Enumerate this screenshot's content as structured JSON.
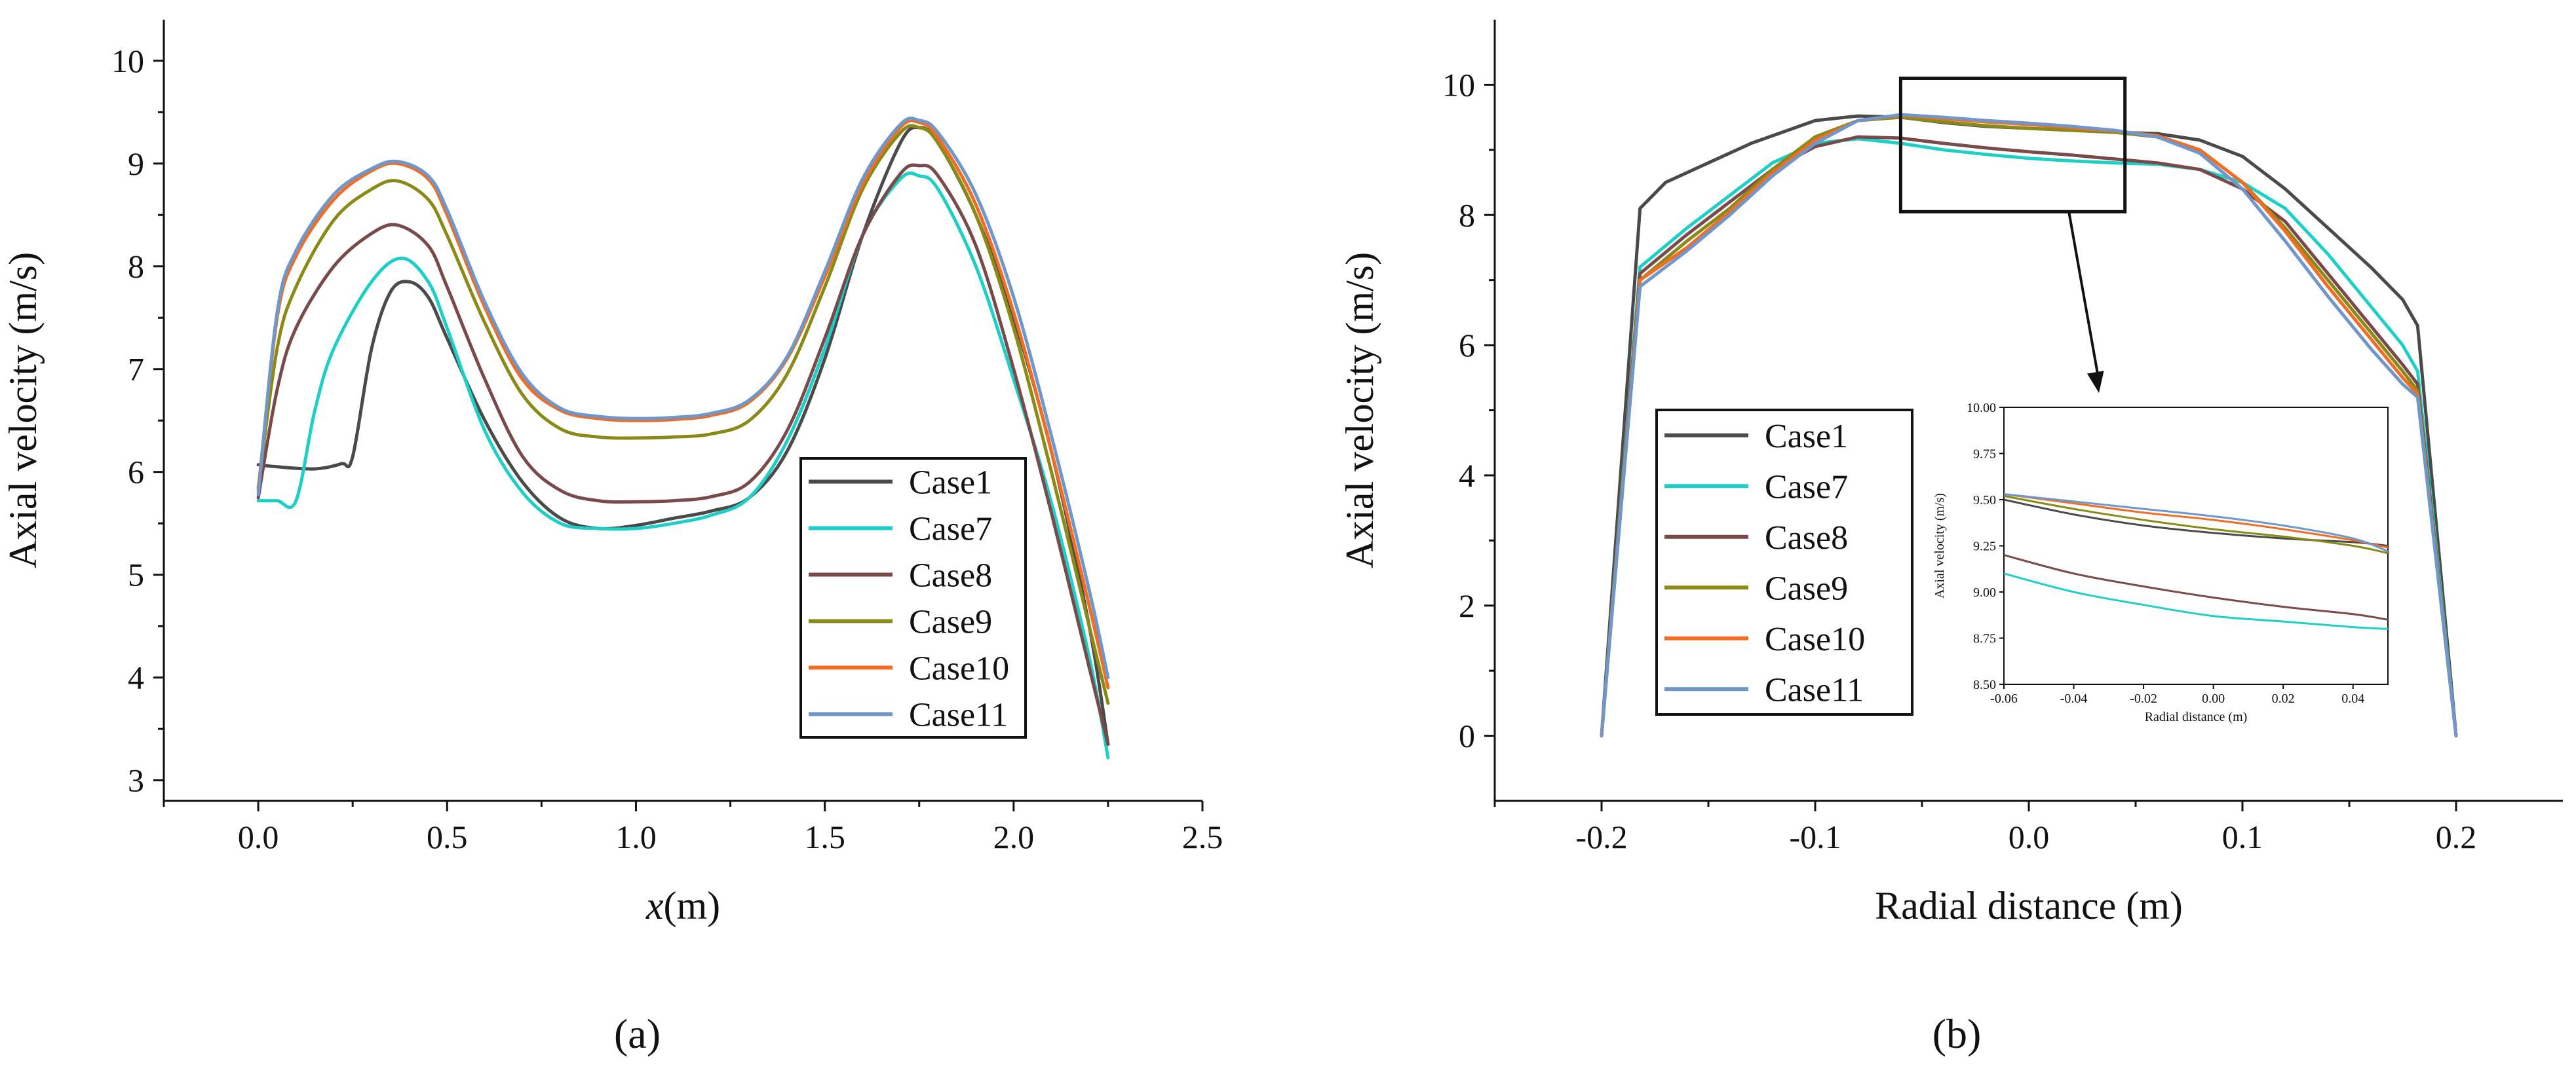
{
  "colors": {
    "Case1": "#4a4a4a",
    "Case7": "#1ecfc8",
    "Case8": "#7a4a4a",
    "Case9": "#8a8a16",
    "Case10": "#f26d23",
    "Case11": "#6f97c9"
  },
  "chart_data": [
    {
      "id": "a",
      "type": "line",
      "caption_letter": "a",
      "xlabel_italic": "x",
      "xlabel_unit": "(m)",
      "ylabel": "Axial velocity (m/s)",
      "xlim": [
        -0.25,
        2.5
      ],
      "ylim": [
        2.8,
        10.4
      ],
      "xticks": [
        0.0,
        0.5,
        1.0,
        1.5,
        2.0,
        2.5
      ],
      "xtick_labels": [
        "0.0",
        "0.5",
        "1.0",
        "1.5",
        "2.0",
        "2.5"
      ],
      "yticks": [
        3,
        4,
        5,
        6,
        7,
        8,
        9,
        10
      ],
      "ytick_labels": [
        "3",
        "4",
        "5",
        "6",
        "7",
        "8",
        "9",
        "10"
      ],
      "series": [
        {
          "name": "Case1",
          "x": [
            0,
            0.05,
            0.15,
            0.22,
            0.25,
            0.3,
            0.35,
            0.4,
            0.45,
            0.5,
            0.6,
            0.7,
            0.8,
            0.9,
            1.0,
            1.1,
            1.2,
            1.3,
            1.4,
            1.5,
            1.6,
            1.7,
            1.75,
            1.8,
            1.9,
            2.0,
            2.1,
            2.2,
            2.25
          ],
          "y": [
            6.07,
            6.05,
            6.03,
            6.08,
            6.15,
            7.2,
            7.75,
            7.85,
            7.7,
            7.3,
            6.5,
            5.9,
            5.55,
            5.45,
            5.48,
            5.55,
            5.62,
            5.75,
            6.2,
            7.1,
            8.3,
            9.2,
            9.35,
            9.2,
            8.5,
            7.5,
            6.2,
            4.5,
            3.35
          ]
        },
        {
          "name": "Case7",
          "x": [
            0,
            0.05,
            0.1,
            0.15,
            0.2,
            0.3,
            0.38,
            0.45,
            0.5,
            0.6,
            0.7,
            0.8,
            0.9,
            1.0,
            1.1,
            1.2,
            1.3,
            1.4,
            1.5,
            1.6,
            1.7,
            1.75,
            1.8,
            1.9,
            2.0,
            2.1,
            2.2,
            2.25
          ],
          "y": [
            5.72,
            5.72,
            5.72,
            6.6,
            7.2,
            7.85,
            8.08,
            7.85,
            7.4,
            6.4,
            5.8,
            5.5,
            5.45,
            5.45,
            5.5,
            5.58,
            5.75,
            6.3,
            7.2,
            8.3,
            8.85,
            8.88,
            8.75,
            8.0,
            6.9,
            5.7,
            4.2,
            3.22
          ]
        },
        {
          "name": "Case8",
          "x": [
            0,
            0.05,
            0.1,
            0.2,
            0.3,
            0.37,
            0.45,
            0.5,
            0.6,
            0.7,
            0.8,
            0.9,
            1.0,
            1.1,
            1.2,
            1.3,
            1.4,
            1.5,
            1.6,
            1.7,
            1.75,
            1.8,
            1.9,
            2.0,
            2.1,
            2.2,
            2.25
          ],
          "y": [
            5.75,
            6.8,
            7.4,
            8.0,
            8.32,
            8.4,
            8.2,
            7.8,
            6.9,
            6.15,
            5.82,
            5.72,
            5.71,
            5.72,
            5.76,
            5.9,
            6.4,
            7.3,
            8.3,
            8.9,
            8.98,
            8.88,
            8.2,
            7.0,
            5.6,
            4.1,
            3.35
          ]
        },
        {
          "name": "Case9",
          "x": [
            0,
            0.05,
            0.1,
            0.2,
            0.3,
            0.37,
            0.45,
            0.5,
            0.6,
            0.7,
            0.8,
            0.9,
            1.0,
            1.1,
            1.2,
            1.3,
            1.4,
            1.5,
            1.6,
            1.7,
            1.75,
            1.8,
            1.9,
            2.0,
            2.1,
            2.2,
            2.25
          ],
          "y": [
            5.85,
            7.2,
            7.8,
            8.45,
            8.75,
            8.83,
            8.65,
            8.3,
            7.45,
            6.75,
            6.42,
            6.34,
            6.33,
            6.34,
            6.37,
            6.5,
            6.95,
            7.8,
            8.75,
            9.3,
            9.35,
            9.2,
            8.5,
            7.4,
            6.0,
            4.5,
            3.75
          ]
        },
        {
          "name": "Case10",
          "x": [
            0,
            0.05,
            0.1,
            0.2,
            0.3,
            0.37,
            0.45,
            0.5,
            0.6,
            0.7,
            0.8,
            0.9,
            1.0,
            1.1,
            1.2,
            1.3,
            1.4,
            1.5,
            1.6,
            1.7,
            1.75,
            1.8,
            1.9,
            2.0,
            2.1,
            2.2,
            2.25
          ],
          "y": [
            5.82,
            7.5,
            8.1,
            8.65,
            8.93,
            9.0,
            8.85,
            8.5,
            7.6,
            6.9,
            6.6,
            6.52,
            6.5,
            6.51,
            6.55,
            6.68,
            7.1,
            7.9,
            8.8,
            9.35,
            9.4,
            9.25,
            8.6,
            7.55,
            6.2,
            4.7,
            3.9
          ]
        },
        {
          "name": "Case11",
          "x": [
            0,
            0.05,
            0.1,
            0.2,
            0.3,
            0.37,
            0.45,
            0.5,
            0.6,
            0.7,
            0.8,
            0.9,
            1.0,
            1.1,
            1.2,
            1.3,
            1.4,
            1.5,
            1.6,
            1.7,
            1.75,
            1.8,
            1.9,
            2.0,
            2.1,
            2.2,
            2.25
          ],
          "y": [
            5.78,
            7.55,
            8.15,
            8.7,
            8.95,
            9.02,
            8.88,
            8.55,
            7.65,
            6.95,
            6.62,
            6.54,
            6.52,
            6.53,
            6.57,
            6.7,
            7.12,
            7.95,
            8.85,
            9.38,
            9.42,
            9.3,
            8.7,
            7.7,
            6.35,
            4.85,
            4.0
          ]
        }
      ]
    },
    {
      "id": "b",
      "type": "line",
      "caption_letter": "b",
      "xlabel": "Radial distance (m)",
      "ylabel": "Axial velocity (m/s)",
      "xlim": [
        -0.25,
        0.25
      ],
      "ylim": [
        -1,
        11
      ],
      "xticks": [
        -0.2,
        -0.1,
        0.0,
        0.1,
        0.2
      ],
      "xtick_labels": [
        "-0.2",
        "-0.1",
        "0.0",
        "0.1",
        "0.2"
      ],
      "yticks": [
        0,
        2,
        4,
        6,
        8,
        10
      ],
      "ytick_labels": [
        "0",
        "2",
        "4",
        "6",
        "8",
        "10"
      ],
      "series": [
        {
          "name": "Case1",
          "x": [
            -0.2,
            -0.182,
            -0.17,
            -0.15,
            -0.13,
            -0.1,
            -0.08,
            -0.06,
            -0.04,
            -0.02,
            0.0,
            0.02,
            0.04,
            0.06,
            0.08,
            0.1,
            0.12,
            0.14,
            0.16,
            0.175,
            0.182,
            0.2
          ],
          "y": [
            0,
            8.1,
            8.5,
            8.8,
            9.1,
            9.45,
            9.52,
            9.5,
            9.42,
            9.36,
            9.33,
            9.3,
            9.27,
            9.25,
            9.15,
            8.9,
            8.4,
            7.8,
            7.2,
            6.7,
            6.3,
            0
          ]
        },
        {
          "name": "Case7",
          "x": [
            -0.2,
            -0.182,
            -0.16,
            -0.14,
            -0.12,
            -0.1,
            -0.08,
            -0.06,
            -0.04,
            -0.02,
            0.0,
            0.02,
            0.04,
            0.06,
            0.08,
            0.1,
            0.12,
            0.14,
            0.16,
            0.175,
            0.182,
            0.2
          ],
          "y": [
            0,
            7.2,
            7.8,
            8.3,
            8.8,
            9.1,
            9.17,
            9.1,
            9.0,
            8.93,
            8.87,
            8.83,
            8.8,
            8.78,
            8.7,
            8.5,
            8.1,
            7.4,
            6.6,
            6.0,
            5.6,
            0
          ]
        },
        {
          "name": "Case8",
          "x": [
            -0.2,
            -0.182,
            -0.16,
            -0.14,
            -0.12,
            -0.1,
            -0.08,
            -0.06,
            -0.04,
            -0.02,
            0.0,
            0.02,
            0.04,
            0.06,
            0.08,
            0.1,
            0.12,
            0.14,
            0.16,
            0.175,
            0.182,
            0.2
          ],
          "y": [
            0,
            7.1,
            7.7,
            8.2,
            8.7,
            9.05,
            9.2,
            9.18,
            9.1,
            9.03,
            8.97,
            8.92,
            8.86,
            8.8,
            8.7,
            8.4,
            7.9,
            7.1,
            6.3,
            5.7,
            5.4,
            0
          ]
        },
        {
          "name": "Case9",
          "x": [
            -0.2,
            -0.182,
            -0.16,
            -0.14,
            -0.12,
            -0.1,
            -0.08,
            -0.06,
            -0.04,
            -0.02,
            0.0,
            0.02,
            0.04,
            0.06,
            0.08,
            0.1,
            0.12,
            0.14,
            0.16,
            0.175,
            0.182,
            0.2
          ],
          "y": [
            0,
            7.0,
            7.6,
            8.1,
            8.7,
            9.2,
            9.45,
            9.5,
            9.43,
            9.37,
            9.33,
            9.3,
            9.27,
            9.2,
            9.0,
            8.5,
            7.8,
            7.0,
            6.2,
            5.6,
            5.3,
            0
          ]
        },
        {
          "name": "Case10",
          "x": [
            -0.2,
            -0.182,
            -0.16,
            -0.14,
            -0.12,
            -0.1,
            -0.08,
            -0.06,
            -0.04,
            -0.02,
            0.0,
            0.02,
            0.04,
            0.06,
            0.08,
            0.1,
            0.12,
            0.14,
            0.16,
            0.175,
            0.182,
            0.2
          ],
          "y": [
            0,
            7.0,
            7.5,
            8.05,
            8.65,
            9.15,
            9.45,
            9.53,
            9.48,
            9.43,
            9.39,
            9.34,
            9.29,
            9.22,
            9.0,
            8.5,
            7.75,
            6.9,
            6.1,
            5.5,
            5.25,
            0
          ]
        },
        {
          "name": "Case11",
          "x": [
            -0.2,
            -0.182,
            -0.16,
            -0.14,
            -0.12,
            -0.1,
            -0.08,
            -0.06,
            -0.04,
            -0.02,
            0.0,
            0.02,
            0.04,
            0.06,
            0.08,
            0.1,
            0.12,
            0.14,
            0.16,
            0.175,
            0.182,
            0.2
          ],
          "y": [
            0,
            6.9,
            7.45,
            8.0,
            8.6,
            9.1,
            9.45,
            9.54,
            9.5,
            9.45,
            9.41,
            9.36,
            9.3,
            9.2,
            8.95,
            8.4,
            7.6,
            6.75,
            5.95,
            5.4,
            5.2,
            0
          ]
        }
      ],
      "zoom_box": {
        "xlim": [
          -0.06,
          0.045
        ],
        "ylim": [
          8.05,
          10.1
        ]
      },
      "inset": {
        "xlabel": "Radial distance (m)",
        "ylabel": "Axial velocity (m/s)",
        "xlim": [
          -0.06,
          0.05
        ],
        "ylim": [
          8.5,
          10.0
        ],
        "xticks": [
          -0.06,
          -0.04,
          -0.02,
          0.0,
          0.02,
          0.04
        ],
        "xtick_labels": [
          "-0.06",
          "-0.04",
          "-0.02",
          "0.00",
          "0.02",
          "0.04"
        ],
        "yticks": [
          8.5,
          8.75,
          9.0,
          9.25,
          9.5,
          9.75,
          10.0
        ],
        "ytick_labels": [
          "8.50",
          "8.75",
          "9.00",
          "9.25",
          "9.50",
          "9.75",
          "10.00"
        ],
        "series": [
          {
            "name": "Case1",
            "x": [
              -0.06,
              -0.04,
              -0.02,
              0.0,
              0.02,
              0.04,
              0.05
            ],
            "y": [
              9.5,
              9.42,
              9.36,
              9.32,
              9.29,
              9.27,
              9.25
            ]
          },
          {
            "name": "Case7",
            "x": [
              -0.06,
              -0.04,
              -0.02,
              0.0,
              0.02,
              0.04,
              0.05
            ],
            "y": [
              9.1,
              9.0,
              8.93,
              8.87,
              8.84,
              8.81,
              8.8
            ]
          },
          {
            "name": "Case8",
            "x": [
              -0.06,
              -0.04,
              -0.02,
              0.0,
              0.02,
              0.04,
              0.05
            ],
            "y": [
              9.2,
              9.1,
              9.03,
              8.97,
              8.92,
              8.88,
              8.85
            ]
          },
          {
            "name": "Case9",
            "x": [
              -0.06,
              -0.04,
              -0.02,
              0.0,
              0.02,
              0.04,
              0.05
            ],
            "y": [
              9.52,
              9.45,
              9.39,
              9.34,
              9.3,
              9.25,
              9.21
            ]
          },
          {
            "name": "Case10",
            "x": [
              -0.06,
              -0.04,
              -0.02,
              0.0,
              0.02,
              0.04,
              0.05
            ],
            "y": [
              9.53,
              9.48,
              9.43,
              9.39,
              9.34,
              9.28,
              9.24
            ]
          },
          {
            "name": "Case11",
            "x": [
              -0.06,
              -0.04,
              -0.02,
              0.0,
              0.02,
              0.04,
              0.05
            ],
            "y": [
              9.53,
              9.49,
              9.45,
              9.41,
              9.36,
              9.29,
              9.22
            ]
          }
        ]
      }
    }
  ]
}
